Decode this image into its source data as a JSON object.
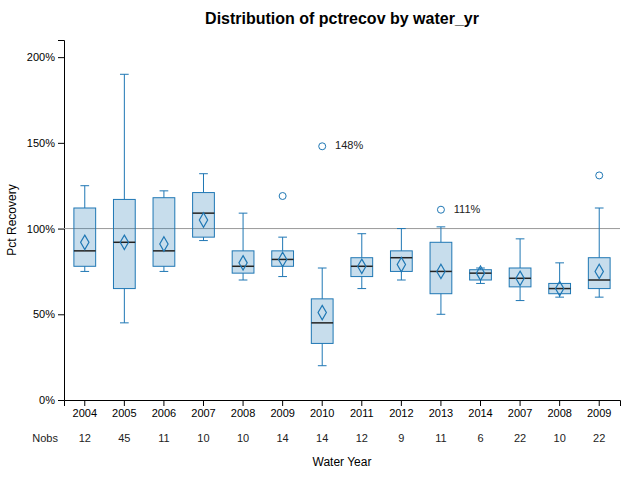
{
  "chart_data": {
    "type": "box",
    "title": "Distribution of pctrecov by water_yr",
    "xlabel": "Water Year",
    "ylabel": "Pct Recovery",
    "categories": [
      "2004",
      "2005",
      "2006",
      "2007",
      "2008",
      "2009",
      "2010",
      "2011",
      "2012",
      "2013",
      "2014",
      "2007",
      "2008",
      "2009"
    ],
    "boxes": [
      {
        "whislo": 75,
        "q1": 78,
        "med": 87,
        "q3": 112,
        "whishi": 125,
        "mean": 92,
        "fliers": []
      },
      {
        "whislo": 45,
        "q1": 65,
        "med": 92,
        "q3": 117,
        "whishi": 190,
        "mean": 92,
        "fliers": []
      },
      {
        "whislo": 75,
        "q1": 78,
        "med": 87,
        "q3": 118,
        "whishi": 122,
        "mean": 91,
        "fliers": []
      },
      {
        "whislo": 93,
        "q1": 95,
        "med": 109,
        "q3": 121,
        "whishi": 132,
        "mean": 105,
        "fliers": []
      },
      {
        "whislo": 70,
        "q1": 74,
        "med": 78,
        "q3": 87,
        "whishi": 109,
        "mean": 80,
        "fliers": []
      },
      {
        "whislo": 72,
        "q1": 78,
        "med": 82,
        "q3": 87,
        "whishi": 95,
        "mean": 82,
        "fliers": [
          119
        ]
      },
      {
        "whislo": 20,
        "q1": 33,
        "med": 45,
        "q3": 59,
        "whishi": 77,
        "mean": 51,
        "fliers": [
          148
        ],
        "flier_labels": [
          "148%"
        ]
      },
      {
        "whislo": 65,
        "q1": 72,
        "med": 78,
        "q3": 83,
        "whishi": 97,
        "mean": 78,
        "fliers": []
      },
      {
        "whislo": 70,
        "q1": 75,
        "med": 83,
        "q3": 87,
        "whishi": 100,
        "mean": 79,
        "fliers": []
      },
      {
        "whislo": 50,
        "q1": 62,
        "med": 75,
        "q3": 92,
        "whishi": 101,
        "mean": 75,
        "fliers": [
          111
        ],
        "flier_labels": [
          "111%"
        ]
      },
      {
        "whislo": 68,
        "q1": 70,
        "med": 74,
        "q3": 76,
        "whishi": 77,
        "mean": 74,
        "fliers": []
      },
      {
        "whislo": 58,
        "q1": 66,
        "med": 71,
        "q3": 77,
        "whishi": 94,
        "mean": 71,
        "fliers": []
      },
      {
        "whislo": 60,
        "q1": 62,
        "med": 65,
        "q3": 68,
        "whishi": 80,
        "mean": 65,
        "fliers": []
      },
      {
        "whislo": 60,
        "q1": 65,
        "med": 70,
        "q3": 83,
        "whishi": 112,
        "mean": 75,
        "fliers": [
          131
        ]
      }
    ],
    "nobs_label": "Nobs",
    "nobs": [
      12,
      45,
      11,
      10,
      10,
      14,
      14,
      12,
      9,
      11,
      6,
      22,
      10,
      22
    ],
    "ref_line": 100,
    "ylim": [
      0,
      210
    ],
    "yticks": [
      {
        "value": 0,
        "label": "0%"
      },
      {
        "value": 50,
        "label": "50%"
      },
      {
        "value": 100,
        "label": "100%"
      },
      {
        "value": 150,
        "label": "150%"
      },
      {
        "value": 200,
        "label": "200%"
      }
    ],
    "grid": false
  }
}
